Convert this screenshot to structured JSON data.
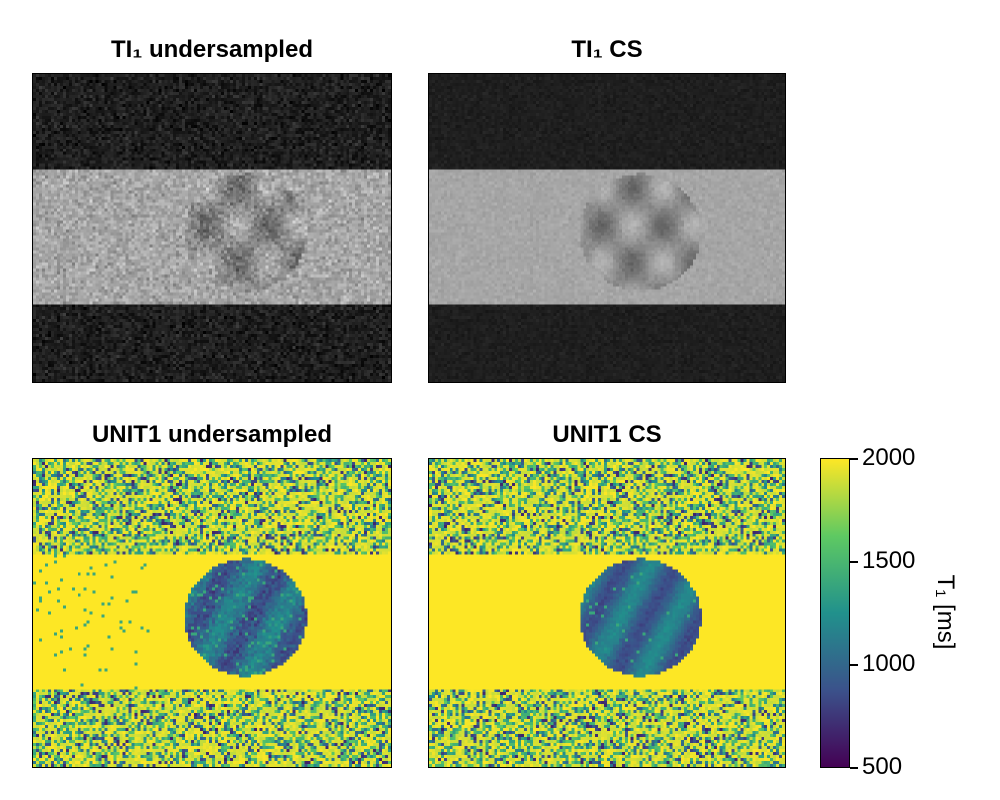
{
  "panels": [
    {
      "title": "TI₁ undersampled",
      "kind": "gray",
      "noise": "high"
    },
    {
      "title": "TI₁ CS",
      "kind": "gray",
      "noise": "low"
    },
    {
      "title": "UNIT1 undersampled",
      "kind": "t1",
      "noise": "high"
    },
    {
      "title": "UNIT1 CS",
      "kind": "t1",
      "noise": "low"
    }
  ],
  "colorbar": {
    "label": "T₁ [ms]",
    "colormap": "viridis",
    "range": [
      500,
      2000
    ],
    "ticks": [
      "2000",
      "1500",
      "1000",
      "500"
    ]
  },
  "colors": {
    "viridis": [
      "#440154",
      "#3b528b",
      "#21918c",
      "#5ec962",
      "#fde725"
    ]
  },
  "chart_data": {
    "type": "heatmap",
    "panels": [
      "TI₁ undersampled",
      "TI₁ CS",
      "UNIT1 undersampled",
      "UNIT1 CS"
    ],
    "colorbar_label": "T₁ [ms]",
    "colorbar_range": [
      500,
      2000
    ],
    "colorbar_ticks": [
      500,
      1000,
      1500,
      2000
    ]
  }
}
